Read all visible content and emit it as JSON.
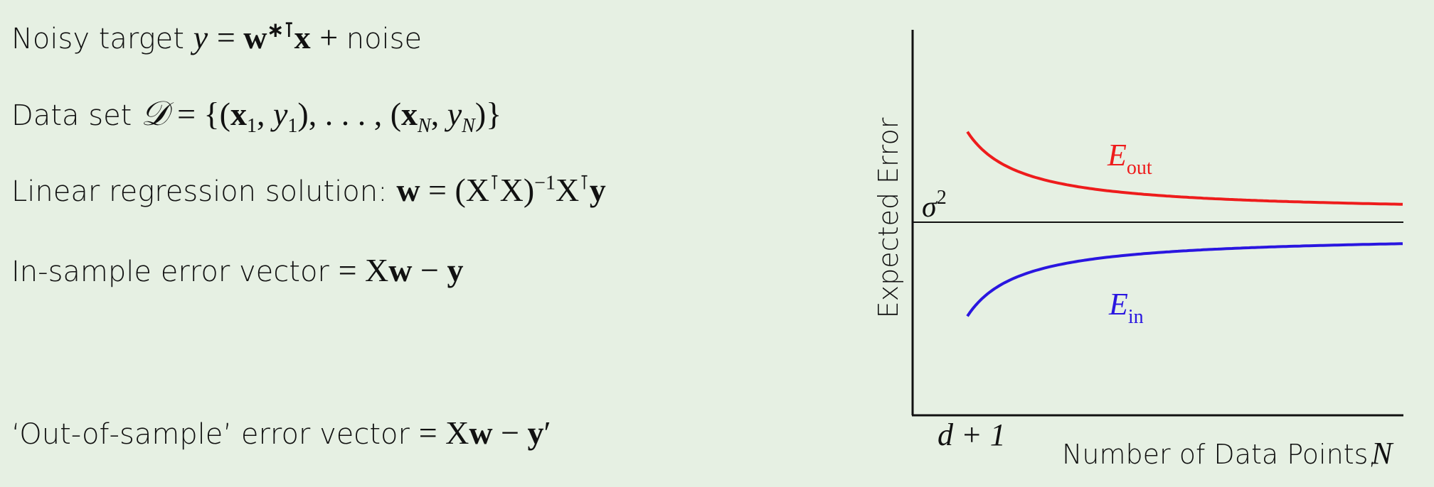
{
  "equations": {
    "noisy_target_label": "Noisy target",
    "noisy_target_noise": "noise",
    "data_set_label": "Data set",
    "linreg_label": "Linear regression solution:",
    "in_sample_label": "In-sample error vector",
    "out_sample_label": "‘Out-of-sample’ error vector"
  },
  "plot": {
    "y_axis_label": "Expected Error",
    "x_axis_label": "Number of Data Points,",
    "x_axis_var": "N",
    "x_tick_label": "d + 1",
    "sigma_label": "σ",
    "sigma_exp": "2",
    "e_out_label": "E",
    "e_out_sub": "out",
    "e_in_label": "E",
    "e_in_sub": "in",
    "e_out_color": "#ee1c1c",
    "e_in_color": "#2a16e0",
    "sigma_line_color": "#111111"
  }
}
